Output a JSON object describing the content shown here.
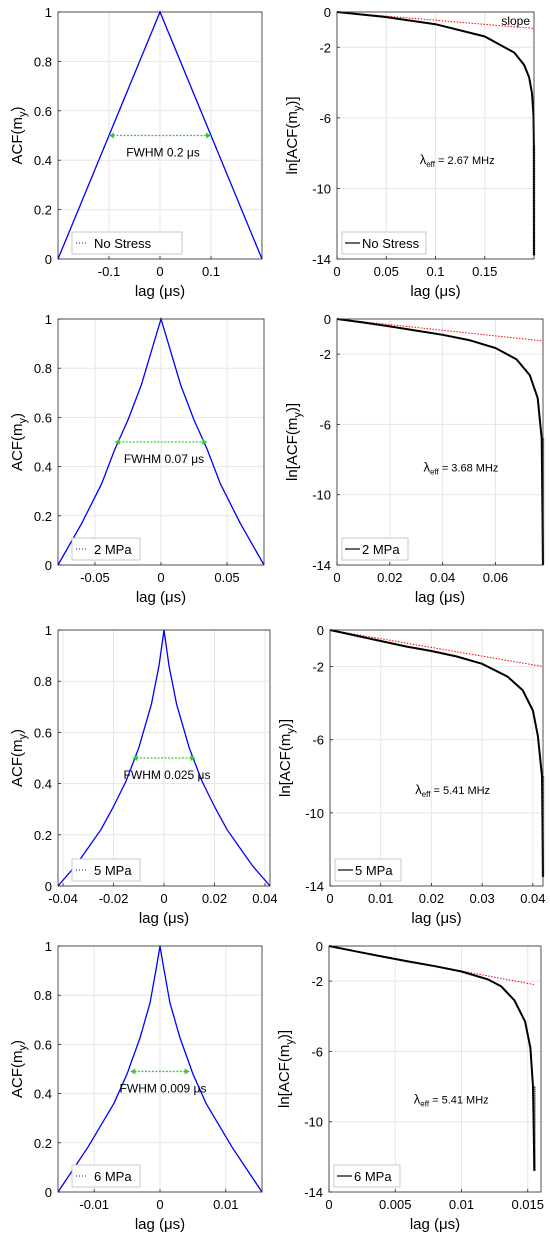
{
  "chart_data": [
    {
      "type": "line",
      "side": "acf",
      "row": 0,
      "xlabel": "lag (μs)",
      "ylabel": "ACF(m_y)",
      "xlim": [
        -0.2,
        0.2
      ],
      "ylim": [
        0,
        1
      ],
      "xticks": [
        -0.1,
        0,
        0.1
      ],
      "xtick_labels": [
        "-0.1",
        "0",
        "0.1"
      ],
      "yticks": [
        0,
        0.2,
        0.4,
        0.6,
        0.8,
        1
      ],
      "ytick_labels": [
        "0",
        "0.2",
        "0.4",
        "0.6",
        "0.8",
        "1"
      ],
      "grid": true,
      "legend_position": "bottom-left",
      "series": [
        {
          "name": "No Stress",
          "color": "#0000ff",
          "x": [
            -0.2,
            0,
            0.2
          ],
          "y": [
            0,
            1,
            0
          ]
        }
      ],
      "annotation": {
        "text": "FWHM 0.2 μs",
        "x_from": -0.1,
        "x_to": 0.1,
        "y": 0.5,
        "color": "#33cc33"
      }
    },
    {
      "type": "line",
      "side": "log",
      "row": 0,
      "xlabel": "lag (μs)",
      "ylabel": "ln[ACF(m_y)]",
      "xlim": [
        0,
        0.2
      ],
      "ylim": [
        -14,
        0
      ],
      "xticks": [
        0,
        0.05,
        0.1,
        0.15
      ],
      "xtick_labels": [
        "0",
        "0.05",
        "0.1",
        "0.15"
      ],
      "yticks": [
        0,
        -2,
        -6,
        -10,
        -14
      ],
      "ytick_labels": [
        "0",
        "-2",
        "-6",
        "-10",
        "-14"
      ],
      "grid": true,
      "legend_position": "bottom-left",
      "series": [
        {
          "name": "No Stress",
          "color": "#000000",
          "x": [
            0,
            0.05,
            0.1,
            0.15,
            0.18,
            0.19,
            0.195,
            0.198,
            0.1995,
            0.1999,
            0.2
          ],
          "y": [
            0,
            -0.29,
            -0.69,
            -1.39,
            -2.3,
            -3.0,
            -3.7,
            -4.6,
            -5.9,
            -7.6,
            -13.8
          ]
        },
        {
          "name": "slope",
          "color": "#ff0000",
          "x": [
            0,
            0.2
          ],
          "y": [
            0,
            -0.93
          ]
        }
      ],
      "annotations": [
        {
          "text": "λ",
          "sub": "eff",
          "value": "= 2.67 MHz"
        },
        {
          "text": "slope"
        }
      ]
    },
    {
      "type": "line",
      "side": "acf",
      "row": 1,
      "xlabel": "lag (μs)",
      "ylabel": "ACF(m_y)",
      "xlim": [
        -0.078,
        0.078
      ],
      "ylim": [
        0,
        1
      ],
      "xticks": [
        -0.05,
        0,
        0.05
      ],
      "xtick_labels": [
        "-0.05",
        "0",
        "0.05"
      ],
      "yticks": [
        0,
        0.2,
        0.4,
        0.6,
        0.8,
        1
      ],
      "ytick_labels": [
        "0",
        "0.2",
        "0.4",
        "0.6",
        "0.8",
        "1"
      ],
      "grid": true,
      "legend_position": "bottom-left",
      "series": [
        {
          "name": "2 MPa",
          "color": "#0000ff",
          "x": [
            -0.078,
            -0.06,
            -0.045,
            -0.035,
            -0.025,
            -0.015,
            -0.005,
            0,
            0.005,
            0.015,
            0.025,
            0.035,
            0.045,
            0.06,
            0.078
          ],
          "y": [
            0,
            0.17,
            0.33,
            0.47,
            0.59,
            0.73,
            0.91,
            1,
            0.91,
            0.73,
            0.59,
            0.47,
            0.33,
            0.17,
            0
          ]
        }
      ],
      "annotation": {
        "text": "FWHM 0.07 μs",
        "x_from": -0.035,
        "x_to": 0.035,
        "y": 0.5,
        "color": "#33cc33"
      }
    },
    {
      "type": "line",
      "side": "log",
      "row": 1,
      "xlabel": "lag (μs)",
      "ylabel": "ln[ACF(m_y)]",
      "xlim": [
        0,
        0.078
      ],
      "ylim": [
        -14,
        0
      ],
      "xticks": [
        0,
        0.02,
        0.04,
        0.06
      ],
      "xtick_labels": [
        "0",
        "0.02",
        "0.04",
        "0.06"
      ],
      "yticks": [
        0,
        -2,
        -6,
        -10,
        -14
      ],
      "ytick_labels": [
        "0",
        "-2",
        "-6",
        "-10",
        "-14"
      ],
      "grid": true,
      "legend_position": "bottom-left",
      "series": [
        {
          "name": "2 MPa",
          "color": "#000000",
          "x": [
            0,
            0.01,
            0.02,
            0.03,
            0.04,
            0.05,
            0.06,
            0.068,
            0.073,
            0.076,
            0.0775,
            0.078
          ],
          "y": [
            0,
            -0.2,
            -0.42,
            -0.66,
            -0.9,
            -1.2,
            -1.65,
            -2.3,
            -3.2,
            -4.5,
            -6.8,
            -14
          ]
        },
        {
          "name": "slope",
          "color": "#ff0000",
          "x": [
            0,
            0.078
          ],
          "y": [
            0,
            -1.25
          ]
        }
      ],
      "annotations": [
        {
          "text": "λ",
          "sub": "eff",
          "value": "= 3.68 MHz"
        }
      ]
    },
    {
      "type": "line",
      "side": "acf",
      "row": 2,
      "xlabel": "lag (μs)",
      "ylabel": "ACF(m_y)",
      "xlim": [
        -0.042,
        0.042
      ],
      "ylim": [
        0,
        1
      ],
      "xticks": [
        -0.04,
        -0.02,
        0,
        0.02,
        0.04
      ],
      "xtick_labels": [
        "-0.04",
        "-0.02",
        "0",
        "0.02",
        "0.04"
      ],
      "yticks": [
        0,
        0.2,
        0.4,
        0.6,
        0.8,
        1
      ],
      "ytick_labels": [
        "0",
        "0.2",
        "0.4",
        "0.6",
        "0.8",
        "1"
      ],
      "grid": true,
      "legend_position": "bottom-left",
      "series": [
        {
          "name": "5 MPa",
          "color": "#0000ff",
          "x": [
            -0.042,
            -0.035,
            -0.03,
            -0.025,
            -0.02,
            -0.015,
            -0.01,
            -0.005,
            -0.002,
            0,
            0.002,
            0.005,
            0.01,
            0.015,
            0.02,
            0.025,
            0.03,
            0.035,
            0.042
          ],
          "y": [
            0,
            0.08,
            0.15,
            0.22,
            0.31,
            0.41,
            0.54,
            0.71,
            0.86,
            1,
            0.86,
            0.71,
            0.54,
            0.41,
            0.31,
            0.22,
            0.15,
            0.08,
            0
          ]
        }
      ],
      "annotation": {
        "text": "FWHM 0.025 μs",
        "x_from": -0.0125,
        "x_to": 0.0125,
        "y": 0.5,
        "color": "#33cc33"
      }
    },
    {
      "type": "line",
      "side": "log",
      "row": 2,
      "xlabel": "lag (μs)",
      "ylabel": "ln[ACF(m_y)]",
      "xlim": [
        0,
        0.042
      ],
      "ylim": [
        -14,
        0
      ],
      "xticks": [
        0,
        0.01,
        0.02,
        0.03,
        0.04
      ],
      "xtick_labels": [
        "0",
        "0.01",
        "0.02",
        "0.03",
        "0.04"
      ],
      "yticks": [
        0,
        -2,
        -6,
        -10,
        -14
      ],
      "ytick_labels": [
        "0",
        "-2",
        "-6",
        "-10",
        "-14"
      ],
      "grid": true,
      "legend_position": "bottom-left",
      "series": [
        {
          "name": "5 MPa",
          "color": "#000000",
          "x": [
            0,
            0.005,
            0.01,
            0.015,
            0.02,
            0.025,
            0.03,
            0.035,
            0.038,
            0.04,
            0.041,
            0.0418,
            0.042
          ],
          "y": [
            0,
            -0.3,
            -0.6,
            -0.9,
            -1.15,
            -1.45,
            -1.85,
            -2.55,
            -3.3,
            -4.4,
            -5.8,
            -8.0,
            -13.5
          ]
        },
        {
          "name": "slope",
          "color": "#ff0000",
          "x": [
            0,
            0.042
          ],
          "y": [
            0,
            -2.0
          ]
        }
      ],
      "annotations": [
        {
          "text": "λ",
          "sub": "eff",
          "value": "= 5.41 MHz"
        }
      ]
    },
    {
      "type": "line",
      "side": "acf",
      "row": 3,
      "xlabel": "lag (μs)",
      "ylabel": "ACF(m_y)",
      "xlim": [
        -0.0155,
        0.0155
      ],
      "ylim": [
        0,
        1
      ],
      "xticks": [
        -0.01,
        0,
        0.01
      ],
      "xtick_labels": [
        "-0.01",
        "0",
        "0.01"
      ],
      "yticks": [
        0,
        0.2,
        0.4,
        0.6,
        0.8,
        1
      ],
      "ytick_labels": [
        "0",
        "0.2",
        "0.4",
        "0.6",
        "0.8",
        "1"
      ],
      "grid": true,
      "legend_position": "bottom-left",
      "series": [
        {
          "name": "6 MPa",
          "color": "#0000ff",
          "x": [
            -0.0155,
            -0.013,
            -0.011,
            -0.009,
            -0.007,
            -0.005,
            -0.003,
            -0.0015,
            -0.0005,
            0,
            0.0005,
            0.0015,
            0.003,
            0.005,
            0.007,
            0.009,
            0.011,
            0.013,
            0.0155
          ],
          "y": [
            0,
            0.1,
            0.18,
            0.27,
            0.36,
            0.48,
            0.63,
            0.77,
            0.92,
            1,
            0.92,
            0.77,
            0.63,
            0.48,
            0.36,
            0.27,
            0.18,
            0.1,
            0
          ]
        }
      ],
      "annotation": {
        "text": "FWHM 0.009 μs",
        "x_from": -0.0045,
        "x_to": 0.0045,
        "y": 0.49,
        "color": "#33cc33"
      }
    },
    {
      "type": "line",
      "side": "log",
      "row": 3,
      "xlabel": "lag (μs)",
      "ylabel": "ln[ACF(m_y)]",
      "xlim": [
        0,
        0.016
      ],
      "ylim": [
        -14,
        0
      ],
      "xticks": [
        0,
        0.005,
        0.01,
        0.015
      ],
      "xtick_labels": [
        "0",
        "0.005",
        "0.01",
        "0.015"
      ],
      "yticks": [
        0,
        -2,
        -6,
        -10,
        -14
      ],
      "ytick_labels": [
        "0",
        "-2",
        "-6",
        "-10",
        "-14"
      ],
      "grid": true,
      "legend_position": "bottom-left",
      "series": [
        {
          "name": "6 MPa",
          "color": "#000000",
          "x": [
            0,
            0.002,
            0.004,
            0.006,
            0.008,
            0.01,
            0.012,
            0.013,
            0.014,
            0.0148,
            0.0152,
            0.0154,
            0.0155
          ],
          "y": [
            0,
            -0.3,
            -0.6,
            -0.88,
            -1.15,
            -1.45,
            -1.9,
            -2.3,
            -3.1,
            -4.3,
            -5.8,
            -8.0,
            -12.8
          ]
        },
        {
          "name": "slope",
          "color": "#ff0000",
          "x": [
            0,
            0.0155
          ],
          "y": [
            0,
            -2.2
          ]
        }
      ],
      "annotations": [
        {
          "text": "λ",
          "sub": "eff",
          "value": "= 5.41 MHz"
        }
      ]
    }
  ]
}
